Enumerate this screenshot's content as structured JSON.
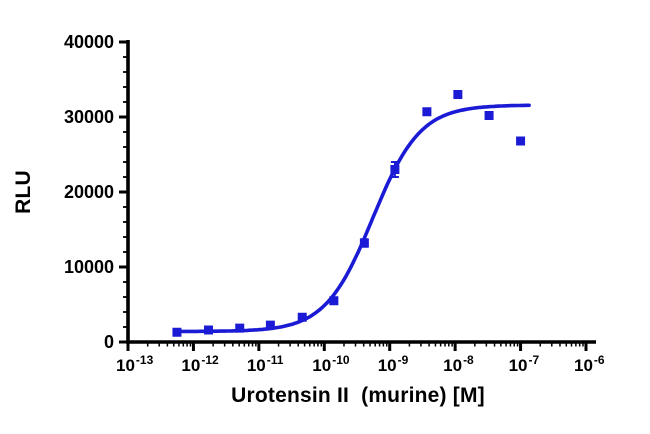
{
  "figure": {
    "background": "#ffffff"
  },
  "chart_data": {
    "type": "scatter",
    "title": "",
    "xlabel": "Urotensin II  (murine) [M]",
    "ylabel": "RLU",
    "x_scale": "log10",
    "xlim_exponents": [
      -13,
      -6
    ],
    "ylim": [
      0,
      40000
    ],
    "x_major_tick_exponents": [
      -13,
      -12,
      -11,
      -10,
      -9,
      -8,
      -7,
      -6
    ],
    "y_major_ticks": [
      0,
      10000,
      20000,
      30000,
      40000
    ],
    "y_minor_step": 2000,
    "grid": false,
    "legend": "none",
    "marker": "square",
    "marker_color": "#1b1bd6",
    "curve_color": "#1b1bd6",
    "axis_color": "#000000",
    "points": [
      {
        "x": 5.6e-13,
        "y": 1300,
        "sem": 0
      },
      {
        "x": 1.7e-12,
        "y": 1600,
        "sem": 0
      },
      {
        "x": 5.1e-12,
        "y": 1850,
        "sem": 0
      },
      {
        "x": 1.5e-11,
        "y": 2250,
        "sem": 0
      },
      {
        "x": 4.6e-11,
        "y": 3300,
        "sem": 200
      },
      {
        "x": 1.4e-10,
        "y": 5500,
        "sem": 350
      },
      {
        "x": 4.1e-10,
        "y": 13200,
        "sem": 500
      },
      {
        "x": 1.2e-09,
        "y": 23000,
        "sem": 1000
      },
      {
        "x": 3.7e-09,
        "y": 30700,
        "sem": 0
      },
      {
        "x": 1.1e-08,
        "y": 33000,
        "sem": 0
      },
      {
        "x": 3.3e-08,
        "y": 30200,
        "sem": 0
      },
      {
        "x": 1e-07,
        "y": 26800,
        "sem": 0
      }
    ],
    "fit": {
      "model": "sigmoidal dose-response (4PL)",
      "bottom": 1400,
      "top": 31600,
      "ec50": 5.5e-10,
      "hill": 1.2,
      "x_start": 5.6e-13,
      "x_end": 1.35e-07
    }
  }
}
